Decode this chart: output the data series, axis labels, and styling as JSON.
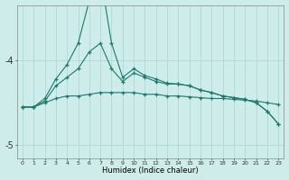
{
  "xlabel": "Humidex (Indice chaleur)",
  "background_color": "#cdecea",
  "grid_color": "#aed8d4",
  "line_color": "#1a7a6e",
  "x_values": [
    0,
    1,
    2,
    3,
    4,
    5,
    6,
    7,
    8,
    9,
    10,
    11,
    12,
    13,
    14,
    15,
    16,
    17,
    18,
    19,
    20,
    21,
    22,
    23
  ],
  "line1": [
    -4.55,
    -4.55,
    -4.5,
    -4.45,
    -4.42,
    -4.42,
    -4.4,
    -4.38,
    -4.38,
    -4.38,
    -4.38,
    -4.4,
    -4.4,
    -4.42,
    -4.42,
    -4.43,
    -4.44,
    -4.45,
    -4.45,
    -4.46,
    -4.47,
    -4.48,
    -4.5,
    -4.52
  ],
  "line2": [
    -4.55,
    -4.55,
    -4.48,
    -4.3,
    -4.2,
    -4.1,
    -3.9,
    -3.8,
    -4.1,
    -4.25,
    -4.15,
    -4.2,
    -4.25,
    -4.28,
    -4.28,
    -4.3,
    -4.35,
    -4.38,
    -4.42,
    -4.44,
    -4.46,
    -4.5,
    -4.6,
    -4.75
  ],
  "line3": [
    -4.55,
    -4.55,
    -4.45,
    -4.22,
    -4.05,
    -3.8,
    -3.3,
    -3.0,
    -3.8,
    -4.2,
    -4.1,
    -4.18,
    -4.22,
    -4.27,
    -4.28,
    -4.3,
    -4.35,
    -4.38,
    -4.42,
    -4.44,
    -4.46,
    -4.5,
    -4.6,
    -4.75
  ],
  "ylim": [
    -5.15,
    -3.35
  ],
  "yticks": [
    -5.0,
    -4.0
  ],
  "xlim": [
    -0.5,
    23.5
  ]
}
